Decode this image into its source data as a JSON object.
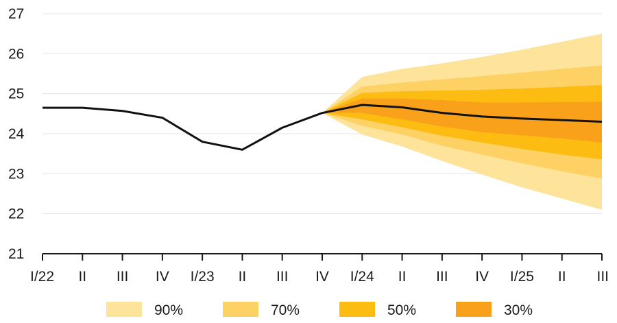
{
  "chart_data": {
    "type": "area",
    "title": "",
    "xlabel": "",
    "ylabel": "",
    "ylim": [
      21,
      27
    ],
    "yticks": [
      21,
      22,
      23,
      24,
      25,
      26,
      27
    ],
    "grid": true,
    "legend_placement": "bottom",
    "categories": [
      "I/22",
      "II",
      "III",
      "IV",
      "I/23",
      "II",
      "III",
      "IV",
      "I/24",
      "II",
      "III",
      "IV",
      "I/25",
      "II",
      "III"
    ],
    "central": [
      24.65,
      24.65,
      24.57,
      24.4,
      23.8,
      23.6,
      24.15,
      24.52,
      24.72,
      24.66,
      24.52,
      24.43,
      24.38,
      24.34,
      24.3
    ],
    "fan_start_index": 7,
    "bands": [
      {
        "name": "90%",
        "color": "#FDE49A",
        "lower": [
          24.52,
          23.98,
          23.68,
          23.32,
          22.98,
          22.66,
          22.38,
          22.1
        ],
        "upper": [
          24.52,
          25.42,
          25.62,
          25.76,
          25.92,
          26.1,
          26.3,
          26.5
        ]
      },
      {
        "name": "70%",
        "color": "#FDD164",
        "lower": [
          24.52,
          24.2,
          23.98,
          23.7,
          23.48,
          23.26,
          23.06,
          22.88
        ],
        "upper": [
          24.52,
          25.18,
          25.28,
          25.36,
          25.44,
          25.53,
          25.62,
          25.71
        ]
      },
      {
        "name": "50%",
        "color": "#FDBC12",
        "lower": [
          24.52,
          24.36,
          24.16,
          23.95,
          23.78,
          23.62,
          23.48,
          23.36
        ],
        "upper": [
          24.52,
          25.02,
          25.06,
          25.08,
          25.1,
          25.13,
          25.17,
          25.22
        ]
      },
      {
        "name": "30%",
        "color": "#F9A11B",
        "lower": [
          24.52,
          24.52,
          24.36,
          24.18,
          24.04,
          23.96,
          23.88,
          23.78
        ],
        "upper": [
          24.52,
          24.88,
          24.88,
          24.84,
          24.78,
          24.78,
          24.79,
          24.8
        ]
      }
    ]
  }
}
